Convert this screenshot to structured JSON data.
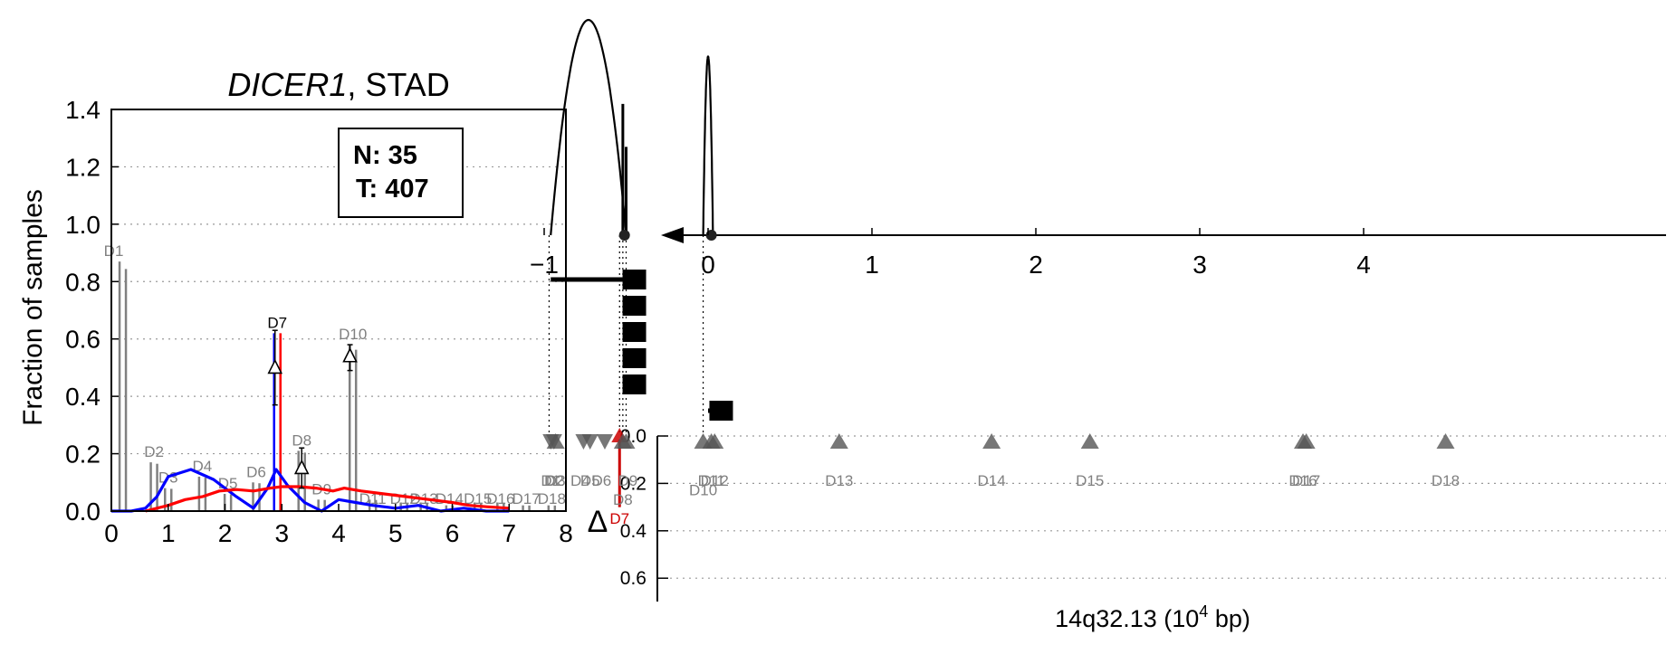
{
  "colors": {
    "normal": "#0000ff",
    "tumor": "#ff0000",
    "exon_bar": "#808080",
    "label_gray": "#808080",
    "highlight": "#cc0000",
    "marker": "#555555",
    "ink": "#000000",
    "grid": "#999999"
  },
  "chart_data": [
    {
      "type": "line",
      "title_gene": "DICER1",
      "title_rest": ", STAD",
      "ylabel": "Fraction of samples",
      "xlabel": "",
      "xlim": [
        0,
        8
      ],
      "ylim": [
        0,
        1.4
      ],
      "x_ticks": [
        "0",
        "1",
        "2",
        "3",
        "4",
        "5",
        "6",
        "7",
        "8"
      ],
      "y_ticks": [
        "0.0",
        "0.2",
        "0.4",
        "0.6",
        "0.8",
        "1.0",
        "1.2",
        "1.4"
      ],
      "grid": "horizontal dotted",
      "legend_box": {
        "n_label": "N: 35",
        "t_label": "T: 407",
        "position": "top-right"
      },
      "exon_bars": [
        {
          "label": "D1",
          "x": 0.2,
          "value": 0.87,
          "highlight": false
        },
        {
          "label": "D2",
          "x": 0.75,
          "value": 0.17,
          "highlight": false
        },
        {
          "label": "D3",
          "x": 1.0,
          "value": 0.08,
          "highlight": false
        },
        {
          "label": "D4",
          "x": 1.6,
          "value": 0.12,
          "highlight": false
        },
        {
          "label": "D5",
          "x": 2.05,
          "value": 0.06,
          "highlight": false
        },
        {
          "label": "D6",
          "x": 2.55,
          "value": 0.1,
          "highlight": false
        },
        {
          "label": "D7",
          "x": 2.92,
          "value": 0.62,
          "highlight": true
        },
        {
          "label": "D8",
          "x": 3.35,
          "value": 0.21,
          "highlight": false
        },
        {
          "label": "D9",
          "x": 3.7,
          "value": 0.04,
          "highlight": false
        },
        {
          "label": "D10",
          "x": 4.25,
          "value": 0.58,
          "highlight": false
        },
        {
          "label": "D11",
          "x": 4.6,
          "value": 0.04,
          "highlight": false
        },
        {
          "label": "D12",
          "x": 5.15,
          "value": 0.03,
          "highlight": false
        },
        {
          "label": "D13",
          "x": 5.5,
          "value": 0.03,
          "highlight": false
        },
        {
          "label": "D14",
          "x": 5.95,
          "value": 0.02,
          "highlight": false
        },
        {
          "label": "D15",
          "x": 6.45,
          "value": 0.03,
          "highlight": false
        },
        {
          "label": "D16",
          "x": 6.85,
          "value": 0.03,
          "highlight": false
        },
        {
          "label": "D17",
          "x": 7.3,
          "value": 0.02,
          "highlight": false
        },
        {
          "label": "D18",
          "x": 7.75,
          "value": 0.02,
          "highlight": false
        }
      ],
      "deltas": [
        {
          "x": 2.88,
          "value": 0.5,
          "err_low": 0.37,
          "err_high": 0.63
        },
        {
          "x": 3.35,
          "value": 0.15,
          "err_low": 0.08,
          "err_high": 0.22
        },
        {
          "x": 4.2,
          "value": 0.54,
          "err_low": 0.49,
          "err_high": 0.58
        }
      ],
      "series": [
        {
          "name": "",
          "color_key": "normal",
          "x": [
            0.0,
            0.35,
            0.6,
            0.8,
            1.0,
            1.4,
            1.8,
            2.0,
            2.2,
            2.5,
            2.75,
            2.9,
            3.1,
            3.4,
            3.7,
            4.0,
            4.3,
            4.6,
            5.0,
            5.4,
            5.8,
            6.2,
            6.6,
            7.0
          ],
          "values": [
            0.0,
            0.0,
            0.01,
            0.05,
            0.12,
            0.145,
            0.11,
            0.08,
            0.05,
            0.01,
            0.08,
            0.145,
            0.09,
            0.03,
            0.0,
            0.04,
            0.03,
            0.02,
            0.01,
            0.02,
            0.0,
            0.01,
            0.0,
            0.0
          ]
        },
        {
          "name": "",
          "color_key": "tumor",
          "x": [
            0.6,
            1.0,
            1.3,
            1.6,
            1.9,
            2.2,
            2.5,
            2.8,
            3.0,
            3.3,
            3.6,
            3.9,
            4.1,
            4.4,
            4.8,
            5.2,
            5.6,
            6.0,
            6.3,
            6.6,
            7.0
          ],
          "values": [
            0.0,
            0.02,
            0.04,
            0.05,
            0.07,
            0.075,
            0.07,
            0.08,
            0.085,
            0.085,
            0.08,
            0.07,
            0.08,
            0.07,
            0.06,
            0.05,
            0.04,
            0.03,
            0.02,
            0.015,
            0.01
          ]
        }
      ]
    },
    {
      "type": "scatter",
      "title": "",
      "xlabel_main": "14q32.13 (10",
      "xlabel_exp": "4",
      "xlabel_tail": " bp)",
      "ylabel": "Δ",
      "xlim": [
        -1.3,
        4.8
      ],
      "ylim": [
        0,
        0.7
      ],
      "x_ticks": [
        "−1",
        "0",
        "1",
        "2",
        "3",
        "4"
      ],
      "y_ticks": [
        "0.0",
        "0.2",
        "0.4",
        "0.6"
      ],
      "grid": "horizontal dotted",
      "gene_direction": "left",
      "peaks": [
        {
          "center": -0.73,
          "half_width": 0.23,
          "height": 1.0
        },
        {
          "center": 0.0,
          "half_width": 0.03,
          "height": 0.83
        }
      ],
      "spikes": [
        {
          "x": -0.52,
          "height": 0.61
        },
        {
          "x": -0.5,
          "height": 0.41
        }
      ],
      "dots": [
        -0.51,
        0.02
      ],
      "guide_lines": [
        -0.97,
        -0.54,
        -0.52,
        -0.5,
        -0.03
      ],
      "transcripts": [
        {
          "start": -0.96,
          "end": -0.45
        },
        {
          "start": -0.5,
          "end": -0.45
        },
        {
          "start": -0.5,
          "end": -0.45
        },
        {
          "start": -0.5,
          "end": -0.45
        },
        {
          "start": -0.5,
          "end": -0.45
        },
        {
          "start": 0.0,
          "end": 0.08
        }
      ],
      "exons": [
        {
          "label": "D1",
          "x": -0.96,
          "down": true,
          "delta": 0.0
        },
        {
          "label": "D2",
          "x": -0.94,
          "down": true,
          "delta": 0.0
        },
        {
          "label": "D3",
          "x": -0.93,
          "down": false,
          "delta": 0.0
        },
        {
          "label": "D4",
          "x": -0.76,
          "down": true,
          "delta": 0.0
        },
        {
          "label": "D5",
          "x": -0.72,
          "down": true,
          "delta": 0.0
        },
        {
          "label": "D6",
          "x": -0.63,
          "down": true,
          "delta": 0.0
        },
        {
          "label": "D7",
          "x": -0.54,
          "down": false,
          "delta": 0.3,
          "highlight": true
        },
        {
          "label": "D8",
          "x": -0.52,
          "down": false,
          "delta": 0.0
        },
        {
          "label": "D9",
          "x": -0.5,
          "down": false,
          "delta": 0.0
        },
        {
          "label": "D10",
          "x": -0.03,
          "down": false,
          "delta": 0.0
        },
        {
          "label": "D11",
          "x": 0.02,
          "down": false,
          "delta": 0.0
        },
        {
          "label": "D12",
          "x": 0.04,
          "down": false,
          "delta": 0.0
        },
        {
          "label": "D13",
          "x": 0.8,
          "down": false,
          "delta": 0.0
        },
        {
          "label": "D14",
          "x": 1.73,
          "down": false,
          "delta": 0.0
        },
        {
          "label": "D15",
          "x": 2.33,
          "down": false,
          "delta": 0.0
        },
        {
          "label": "D16",
          "x": 3.63,
          "down": false,
          "delta": 0.0
        },
        {
          "label": "D17",
          "x": 3.65,
          "down": false,
          "delta": 0.0
        },
        {
          "label": "D18",
          "x": 4.5,
          "down": false,
          "delta": 0.0
        }
      ],
      "exon_label_rows": [
        {
          "text": "D1",
          "x": -0.96,
          "row": 0
        },
        {
          "text": "D2",
          "x": -0.94,
          "row": 0
        },
        {
          "text": "D3",
          "x": -0.93,
          "row": 0
        },
        {
          "text": "D4",
          "x": -0.78,
          "row": 0
        },
        {
          "text": "D5",
          "x": -0.72,
          "row": 0
        },
        {
          "text": "D6",
          "x": -0.65,
          "row": 0
        },
        {
          "text": "D9",
          "x": -0.49,
          "row": 0
        },
        {
          "text": "D8",
          "x": -0.52,
          "row": 1
        },
        {
          "text": "D7",
          "x": -0.54,
          "row": 2,
          "highlight": true
        },
        {
          "text": "D11",
          "x": 0.02,
          "row": 0
        },
        {
          "text": "D12",
          "x": 0.04,
          "row": 0
        },
        {
          "text": "D10",
          "x": -0.03,
          "row": 0.5
        },
        {
          "text": "D13",
          "x": 0.8,
          "row": 0
        },
        {
          "text": "D14",
          "x": 1.73,
          "row": 0
        },
        {
          "text": "D15",
          "x": 2.33,
          "row": 0
        },
        {
          "text": "D16",
          "x": 3.63,
          "row": 0
        },
        {
          "text": "D17",
          "x": 3.65,
          "row": 0
        },
        {
          "text": "D18",
          "x": 4.5,
          "row": 0
        }
      ]
    }
  ]
}
